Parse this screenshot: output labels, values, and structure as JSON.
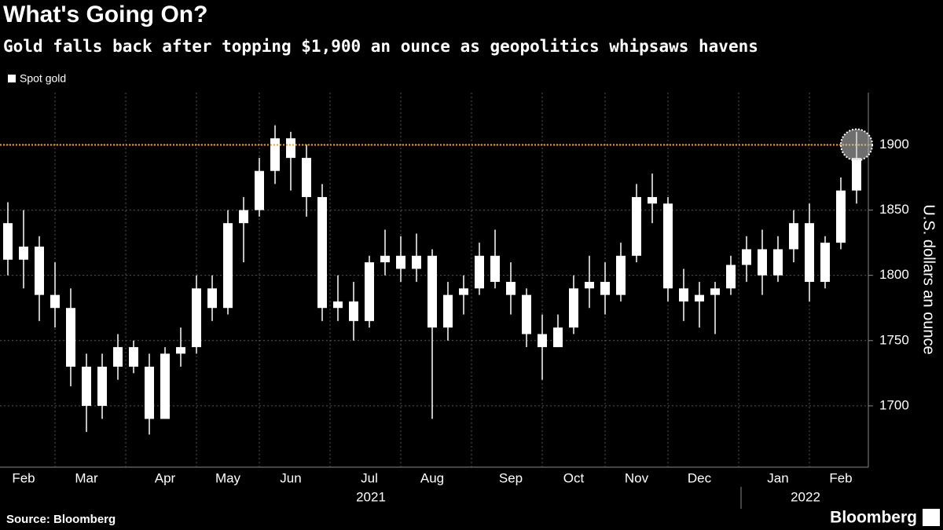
{
  "chart_data": {
    "type": "candlestick",
    "title": "What's Going On?",
    "subtitle": "Gold falls back after topping $1,900 an ounce as geopolitics whipsaws havens",
    "y_axis_label": "U.S. dollars an ounce",
    "source": "Source: Bloomberg",
    "brand": "Bloomberg",
    "year_labels": [
      "2021",
      "2022"
    ],
    "categories": [
      null,
      "Feb",
      null,
      null,
      null,
      "Mar",
      null,
      null,
      null,
      null,
      "Apr",
      null,
      null,
      null,
      "May",
      null,
      null,
      null,
      "Jun",
      null,
      null,
      null,
      null,
      "Jul",
      null,
      null,
      null,
      "Aug",
      null,
      null,
      null,
      null,
      "Sep",
      null,
      null,
      null,
      "Oct",
      null,
      null,
      null,
      "Nov",
      null,
      null,
      null,
      "Dec",
      null,
      null,
      null,
      null,
      "Jan",
      null,
      null,
      null,
      "Feb",
      null
    ],
    "series": [
      {
        "name": "Spot gold",
        "color": "#ffffff",
        "open": [
          1840,
          1812,
          1822,
          1785,
          1775,
          1730,
          1700,
          1730,
          1745,
          1730,
          1690,
          1740,
          1745,
          1790,
          1775,
          1840,
          1850,
          1880,
          1905,
          1890,
          1860,
          1775,
          1780,
          1765,
          1810,
          1815,
          1805,
          1815,
          1760,
          1785,
          1790,
          1815,
          1795,
          1785,
          1755,
          1745,
          1760,
          1790,
          1795,
          1785,
          1815,
          1860,
          1855,
          1790,
          1780,
          1785,
          1790,
          1808,
          1820,
          1800,
          1820,
          1840,
          1795,
          1825,
          1865
        ],
        "high": [
          1856,
          1850,
          1830,
          1810,
          1790,
          1740,
          1740,
          1755,
          1750,
          1740,
          1745,
          1760,
          1800,
          1800,
          1850,
          1860,
          1890,
          1915,
          1910,
          1900,
          1870,
          1800,
          1795,
          1815,
          1835,
          1830,
          1832,
          1820,
          1795,
          1800,
          1825,
          1835,
          1810,
          1790,
          1770,
          1770,
          1800,
          1815,
          1810,
          1825,
          1870,
          1878,
          1860,
          1805,
          1795,
          1795,
          1815,
          1830,
          1835,
          1830,
          1850,
          1855,
          1830,
          1875,
          1910
        ],
        "low": [
          1800,
          1790,
          1765,
          1760,
          1715,
          1680,
          1690,
          1720,
          1725,
          1678,
          1690,
          1730,
          1740,
          1765,
          1770,
          1810,
          1845,
          1870,
          1865,
          1845,
          1765,
          1765,
          1750,
          1760,
          1800,
          1795,
          1795,
          1690,
          1750,
          1770,
          1785,
          1790,
          1770,
          1745,
          1720,
          1745,
          1755,
          1775,
          1770,
          1780,
          1810,
          1840,
          1780,
          1765,
          1760,
          1755,
          1785,
          1795,
          1785,
          1795,
          1810,
          1780,
          1790,
          1820,
          1855
        ],
        "close": [
          1812,
          1822,
          1785,
          1775,
          1730,
          1700,
          1730,
          1745,
          1730,
          1690,
          1740,
          1745,
          1790,
          1775,
          1840,
          1850,
          1880,
          1905,
          1890,
          1860,
          1775,
          1780,
          1765,
          1810,
          1815,
          1805,
          1815,
          1760,
          1785,
          1790,
          1815,
          1795,
          1785,
          1755,
          1745,
          1760,
          1790,
          1795,
          1785,
          1815,
          1860,
          1855,
          1790,
          1780,
          1785,
          1790,
          1808,
          1820,
          1800,
          1820,
          1840,
          1795,
          1825,
          1865,
          1890
        ]
      }
    ],
    "reference_line": {
      "value": 1900,
      "color": "#f0a030"
    },
    "ylim": [
      1653,
      1940
    ],
    "yticks": [
      1700,
      1750,
      1800,
      1850,
      1900
    ],
    "grid": true
  }
}
